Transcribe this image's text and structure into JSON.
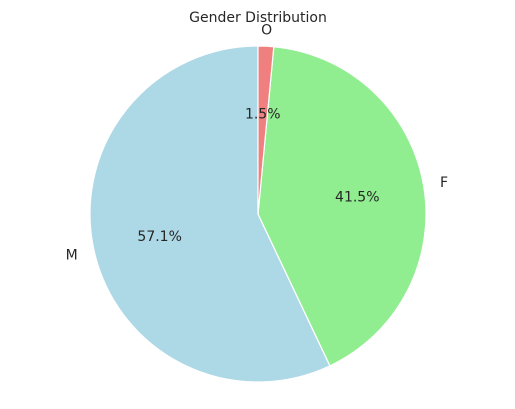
{
  "chart_data": {
    "type": "pie",
    "title": "Gender Distribution",
    "categories": [
      "M",
      "F",
      "O"
    ],
    "values": [
      57.1,
      41.5,
      1.5
    ],
    "value_labels": [
      "57.1%",
      "41.5%",
      "1.5%"
    ],
    "colors": [
      "#add8e6",
      "#90ee90",
      "#f08080"
    ],
    "start_angle": 90,
    "direction": "counterclockwise",
    "legend": "none"
  }
}
